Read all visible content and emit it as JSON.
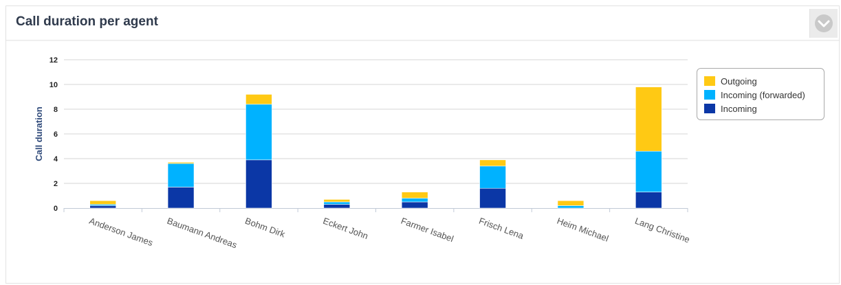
{
  "panel": {
    "title": "Call duration per agent",
    "collapse_icon": "chevron-down-icon"
  },
  "chart_data": {
    "type": "bar",
    "stacked": true,
    "categories": [
      "Anderson James",
      "Baumann Andreas",
      "Bohm Dirk",
      "Eckert John",
      "Farmer Isabel",
      "Frisch Lena",
      "Heim Michael",
      "Lang Christine"
    ],
    "series": [
      {
        "name": "Incoming",
        "color": "#0b37a6",
        "values": [
          0.2,
          1.7,
          3.9,
          0.3,
          0.5,
          1.6,
          0.0,
          1.3
        ]
      },
      {
        "name": "Incoming (forwarded)",
        "color": "#00b2ff",
        "values": [
          0.1,
          1.9,
          4.5,
          0.2,
          0.3,
          1.8,
          0.2,
          3.3
        ]
      },
      {
        "name": "Outgoing",
        "color": "#ffc914",
        "values": [
          0.3,
          0.1,
          0.8,
          0.2,
          0.5,
          0.5,
          0.4,
          5.2
        ]
      }
    ],
    "legend_order": [
      "Outgoing",
      "Incoming (forwarded)",
      "Incoming"
    ],
    "ylabel": "Call duration",
    "xlabel": "",
    "ylim": [
      0,
      12
    ],
    "yticks": [
      0,
      2,
      4,
      6,
      8,
      10,
      12
    ],
    "grid": true,
    "legend_position": "right"
  }
}
